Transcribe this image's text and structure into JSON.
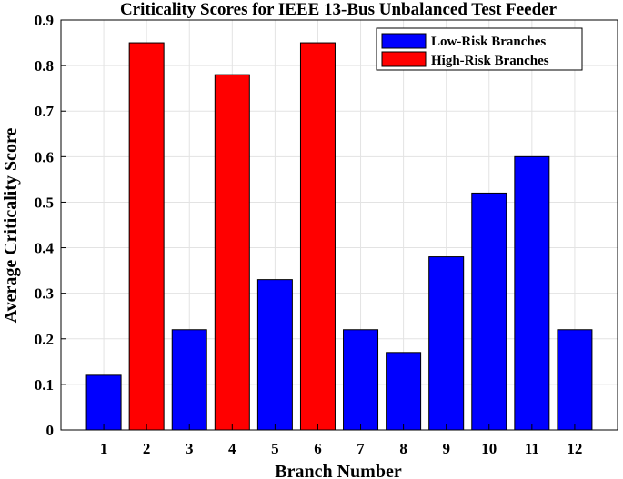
{
  "chart_data": {
    "type": "bar",
    "title": "Criticality Scores for IEEE 13-Bus Unbalanced Test Feeder",
    "xlabel": "Branch Number",
    "ylabel": "Average Criticality Score",
    "ylim": [
      0,
      0.9
    ],
    "yticks": [
      "0",
      "0.1",
      "0.2",
      "0.3",
      "0.4",
      "0.5",
      "0.6",
      "0.7",
      "0.8",
      "0.9"
    ],
    "grid": true,
    "legend_position": "top-right",
    "categories": [
      "1",
      "2",
      "3",
      "4",
      "5",
      "6",
      "7",
      "8",
      "9",
      "10",
      "11",
      "12"
    ],
    "values": [
      0.12,
      0.85,
      0.22,
      0.78,
      0.33,
      0.85,
      0.22,
      0.17,
      0.38,
      0.52,
      0.6,
      0.22
    ],
    "risk_class": [
      "low",
      "high",
      "low",
      "high",
      "low",
      "high",
      "low",
      "low",
      "low",
      "low",
      "low",
      "low"
    ],
    "series": [
      {
        "name": "Low-Risk Branches",
        "key": "low",
        "color": "#0000ff"
      },
      {
        "name": "High-Risk Branches",
        "key": "high",
        "color": "#ff0000"
      }
    ]
  }
}
